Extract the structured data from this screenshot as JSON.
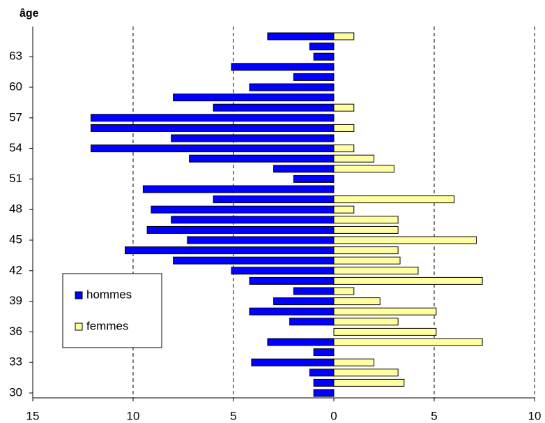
{
  "chart_data": {
    "type": "pyramid",
    "title": "âge",
    "categories": [
      30,
      null,
      null,
      33,
      null,
      null,
      36,
      null,
      null,
      39,
      null,
      null,
      42,
      null,
      null,
      45,
      null,
      null,
      48,
      null,
      null,
      51,
      null,
      null,
      54,
      null,
      null,
      57,
      null,
      null,
      60,
      null,
      null,
      63,
      null,
      null
    ],
    "series": [
      {
        "name": "hommes",
        "color": "#0000ff",
        "side": "left",
        "values": [
          1.0,
          1.0,
          1.2,
          4.1,
          1.0,
          3.3,
          0,
          2.2,
          4.2,
          3.0,
          2.0,
          4.2,
          5.1,
          8.0,
          10.4,
          7.3,
          9.3,
          8.1,
          9.1,
          6.0,
          9.5,
          2.0,
          3.0,
          7.2,
          12.1,
          8.1,
          12.1,
          12.1,
          6.0,
          8.0,
          4.2,
          2.0,
          5.1,
          1.0,
          1.2,
          3.3
        ]
      },
      {
        "name": "femmes",
        "color": "#ffffa0",
        "side": "right",
        "values": [
          0,
          3.5,
          3.2,
          2.0,
          0,
          7.4,
          5.1,
          3.2,
          5.1,
          2.3,
          1.0,
          7.4,
          4.2,
          3.3,
          3.2,
          7.1,
          3.2,
          3.2,
          1.0,
          6.0,
          0,
          0,
          3.0,
          2.0,
          1.0,
          0,
          1.0,
          0,
          1.0,
          0,
          0,
          0,
          0,
          0,
          0,
          1.0
        ]
      }
    ],
    "xlim": [
      -15,
      10
    ],
    "xticks": [
      {
        "value": -15,
        "label": "15"
      },
      {
        "value": -10,
        "label": "10"
      },
      {
        "value": -5,
        "label": "5"
      },
      0,
      5,
      10
    ],
    "grid": true,
    "legend": "lower-left"
  }
}
